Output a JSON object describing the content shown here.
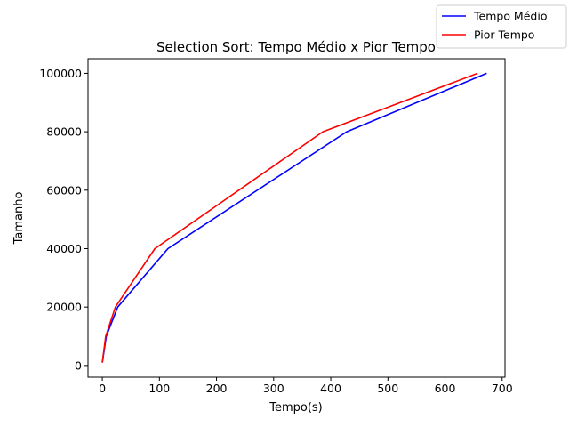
{
  "chart_data": {
    "type": "line",
    "title": "Selection Sort: Tempo Médio x Pior Tempo",
    "xlabel": "Tempo(s)",
    "ylabel": "Tamanho",
    "xlim": [
      -25,
      705
    ],
    "ylim": [
      -4000,
      105000
    ],
    "xticks": [
      0,
      100,
      200,
      300,
      400,
      500,
      600,
      700
    ],
    "yticks": [
      0,
      20000,
      40000,
      60000,
      80000,
      100000
    ],
    "grid": false,
    "legend_position": "top-right",
    "series": [
      {
        "name": "Tempo Médio",
        "color": "#0000ff",
        "points": [
          [
            0.01,
            1000
          ],
          [
            7,
            10000
          ],
          [
            27,
            20000
          ],
          [
            115,
            40000
          ],
          [
            428,
            80000
          ],
          [
            673,
            100000
          ]
        ]
      },
      {
        "name": "Pior Tempo",
        "color": "#ff0000",
        "points": [
          [
            0.01,
            1000
          ],
          [
            6,
            10000
          ],
          [
            23,
            20000
          ],
          [
            92,
            40000
          ],
          [
            386,
            80000
          ],
          [
            657,
            100000
          ]
        ]
      }
    ]
  }
}
